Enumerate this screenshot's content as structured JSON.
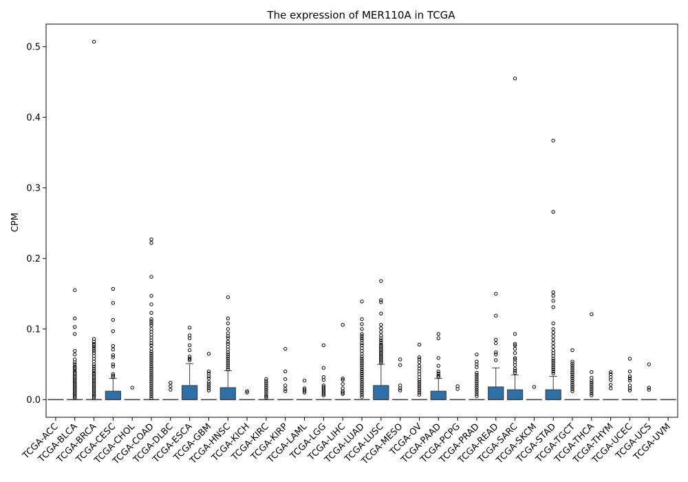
{
  "chart_data": {
    "type": "box",
    "title": "The expression of MER110A in TCGA",
    "xlabel": "",
    "ylabel": "CPM",
    "ylim": [
      -0.025,
      0.532
    ],
    "yticks": [
      0.0,
      0.1,
      0.2,
      0.3,
      0.4,
      0.5
    ],
    "ytick_labels": [
      "0.0",
      "0.1",
      "0.2",
      "0.3",
      "0.4",
      "0.5"
    ],
    "grid": false,
    "legend": null,
    "box_color": "#2f6fa8",
    "box_edge_color": "#3a3a3a",
    "categories": [
      "TCGA-ACC",
      "TCGA-BLCA",
      "TCGA-BRCA",
      "TCGA-CESC",
      "TCGA-CHOL",
      "TCGA-COAD",
      "TCGA-DLBC",
      "TCGA-ESCA",
      "TCGA-GBM",
      "TCGA-HNSC",
      "TCGA-KICH",
      "TCGA-KIRC",
      "TCGA-KIRP",
      "TCGA-LAML",
      "TCGA-LGG",
      "TCGA-LIHC",
      "TCGA-LUAD",
      "TCGA-LUSC",
      "TCGA-MESO",
      "TCGA-OV",
      "TCGA-PAAD",
      "TCGA-PCPG",
      "TCGA-PRAD",
      "TCGA-READ",
      "TCGA-SARC",
      "TCGA-SKCM",
      "TCGA-STAD",
      "TCGA-TGCT",
      "TCGA-THCA",
      "TCGA-THYM",
      "TCGA-UCEC",
      "TCGA-UCS",
      "TCGA-UVM"
    ],
    "boxes": [
      {
        "q1": 0,
        "median": 0,
        "q3": 0,
        "whisker_high": 0,
        "outliers": []
      },
      {
        "q1": 0,
        "median": 0,
        "q3": 0,
        "whisker_high": 0,
        "outliers": [
          0.155,
          0.115,
          0.103,
          0.093,
          0.069,
          0.064,
          0.057,
          0.053,
          0.05,
          0.047,
          0.045,
          0.043,
          0.04,
          0.038,
          0.036,
          0.034,
          0.032,
          0.03,
          0.028,
          0.026,
          0.024,
          0.022,
          0.02,
          0.018,
          0.016,
          0.014,
          0.012,
          0.01,
          0.008,
          0.006,
          0.004,
          0.002
        ]
      },
      {
        "q1": 0,
        "median": 0,
        "q3": 0,
        "whisker_high": 0,
        "outliers": [
          0.507,
          0.086,
          0.082,
          0.079,
          0.077,
          0.075,
          0.072,
          0.069,
          0.066,
          0.062,
          0.058,
          0.054,
          0.05,
          0.047,
          0.044,
          0.041,
          0.038,
          0.036,
          0.034,
          0.032,
          0.03,
          0.028,
          0.026,
          0.024,
          0.022,
          0.02,
          0.018,
          0.016,
          0.014,
          0.012,
          0.01,
          0.008,
          0.006,
          0.004,
          0.002
        ]
      },
      {
        "q1": 0,
        "median": 0,
        "q3": 0.012,
        "whisker_high": 0.03,
        "outliers": [
          0.157,
          0.137,
          0.113,
          0.097,
          0.076,
          0.071,
          0.063,
          0.06,
          0.05,
          0.047,
          0.036,
          0.034,
          0.032
        ]
      },
      {
        "q1": 0,
        "median": 0,
        "q3": 0,
        "whisker_high": 0,
        "outliers": [
          0.017
        ]
      },
      {
        "q1": 0,
        "median": 0,
        "q3": 0,
        "whisker_high": 0,
        "outliers": [
          0.227,
          0.222,
          0.174,
          0.147,
          0.135,
          0.123,
          0.114,
          0.111,
          0.108,
          0.105,
          0.1,
          0.096,
          0.092,
          0.088,
          0.084,
          0.08,
          0.077,
          0.072,
          0.068,
          0.065,
          0.062,
          0.059,
          0.056,
          0.053,
          0.05,
          0.047,
          0.044,
          0.041,
          0.038,
          0.035,
          0.032,
          0.029,
          0.026,
          0.023,
          0.02,
          0.017,
          0.014,
          0.011,
          0.008,
          0.005,
          0.002
        ]
      },
      {
        "q1": 0,
        "median": 0,
        "q3": 0,
        "whisker_high": 0,
        "outliers": [
          0.024,
          0.019,
          0.014
        ]
      },
      {
        "q1": 0,
        "median": 0,
        "q3": 0.02,
        "whisker_high": 0.051,
        "outliers": [
          0.102,
          0.091,
          0.087,
          0.077,
          0.07,
          0.061,
          0.058,
          0.056
        ]
      },
      {
        "q1": 0,
        "median": 0,
        "q3": 0,
        "whisker_high": 0,
        "outliers": [
          0.065,
          0.04,
          0.037,
          0.033,
          0.03,
          0.025,
          0.022,
          0.019,
          0.016,
          0.013
        ]
      },
      {
        "q1": 0,
        "median": 0,
        "q3": 0.017,
        "whisker_high": 0.041,
        "outliers": [
          0.145,
          0.115,
          0.108,
          0.1,
          0.094,
          0.09,
          0.087,
          0.082,
          0.079,
          0.075,
          0.071,
          0.067,
          0.064,
          0.061,
          0.058,
          0.055,
          0.052,
          0.049,
          0.046,
          0.043
        ]
      },
      {
        "q1": 0,
        "median": 0,
        "q3": 0,
        "whisker_high": 0,
        "outliers": [
          0.012,
          0.01
        ]
      },
      {
        "q1": 0,
        "median": 0,
        "q3": 0,
        "whisker_high": 0,
        "outliers": [
          0.029,
          0.026,
          0.023,
          0.02,
          0.017,
          0.014,
          0.011,
          0.008,
          0.005,
          0.003
        ]
      },
      {
        "q1": 0,
        "median": 0,
        "q3": 0,
        "whisker_high": 0,
        "outliers": [
          0.072,
          0.04,
          0.029,
          0.02,
          0.015,
          0.012
        ]
      },
      {
        "q1": 0,
        "median": 0,
        "q3": 0,
        "whisker_high": 0,
        "outliers": [
          0.027,
          0.016,
          0.014,
          0.012,
          0.01
        ]
      },
      {
        "q1": 0,
        "median": 0,
        "q3": 0,
        "whisker_high": 0,
        "outliers": [
          0.077,
          0.045,
          0.032,
          0.028,
          0.02,
          0.018,
          0.016,
          0.014,
          0.012,
          0.01,
          0.008,
          0.006
        ]
      },
      {
        "q1": 0,
        "median": 0,
        "q3": 0,
        "whisker_high": 0,
        "outliers": [
          0.106,
          0.03,
          0.028,
          0.022,
          0.016,
          0.012,
          0.01,
          0.008
        ]
      },
      {
        "q1": 0,
        "median": 0,
        "q3": 0,
        "whisker_high": 0,
        "outliers": [
          0.139,
          0.114,
          0.107,
          0.1,
          0.093,
          0.09,
          0.087,
          0.084,
          0.08,
          0.077,
          0.073,
          0.069,
          0.065,
          0.061,
          0.058,
          0.055,
          0.052,
          0.049,
          0.046,
          0.043,
          0.04,
          0.037,
          0.034,
          0.031,
          0.028,
          0.025,
          0.022,
          0.019,
          0.016,
          0.013,
          0.01,
          0.007,
          0.004
        ]
      },
      {
        "q1": 0,
        "median": 0,
        "q3": 0.02,
        "whisker_high": 0.05,
        "outliers": [
          0.168,
          0.141,
          0.138,
          0.122,
          0.106,
          0.101,
          0.096,
          0.091,
          0.087,
          0.084,
          0.081,
          0.078,
          0.076,
          0.074,
          0.072,
          0.07,
          0.068,
          0.066,
          0.064,
          0.062,
          0.06,
          0.058,
          0.056,
          0.054,
          0.052
        ]
      },
      {
        "q1": 0,
        "median": 0,
        "q3": 0,
        "whisker_high": 0,
        "outliers": [
          0.057,
          0.049,
          0.02,
          0.016,
          0.013
        ]
      },
      {
        "q1": 0,
        "median": 0,
        "q3": 0,
        "whisker_high": 0,
        "outliers": [
          0.078,
          0.06,
          0.057,
          0.053,
          0.048,
          0.044,
          0.04,
          0.036,
          0.032,
          0.028,
          0.025,
          0.022,
          0.019,
          0.016,
          0.013,
          0.01,
          0.007
        ]
      },
      {
        "q1": 0,
        "median": 0,
        "q3": 0.012,
        "whisker_high": 0.03,
        "outliers": [
          0.093,
          0.087,
          0.059,
          0.048,
          0.04,
          0.037,
          0.034,
          0.032
        ]
      },
      {
        "q1": 0,
        "median": 0,
        "q3": 0,
        "whisker_high": 0,
        "outliers": [
          0.019,
          0.015
        ]
      },
      {
        "q1": 0,
        "median": 0,
        "q3": 0,
        "whisker_high": 0,
        "outliers": [
          0.064,
          0.054,
          0.05,
          0.046,
          0.038,
          0.035,
          0.032,
          0.029,
          0.026,
          0.023,
          0.02,
          0.017,
          0.014,
          0.011,
          0.008,
          0.005
        ]
      },
      {
        "q1": 0,
        "median": 0,
        "q3": 0.018,
        "whisker_high": 0.045,
        "outliers": [
          0.15,
          0.119,
          0.085,
          0.08,
          0.067,
          0.064,
          0.056
        ]
      },
      {
        "q1": 0,
        "median": 0,
        "q3": 0.014,
        "whisker_high": 0.035,
        "outliers": [
          0.455,
          0.093,
          0.079,
          0.077,
          0.072,
          0.066,
          0.059,
          0.057,
          0.053,
          0.049,
          0.044,
          0.041,
          0.038
        ]
      },
      {
        "q1": 0,
        "median": 0,
        "q3": 0,
        "whisker_high": 0,
        "outliers": [
          0.018
        ]
      },
      {
        "q1": 0,
        "median": 0,
        "q3": 0.014,
        "whisker_high": 0.033,
        "outliers": [
          0.367,
          0.266,
          0.152,
          0.147,
          0.14,
          0.131,
          0.108,
          0.1,
          0.095,
          0.09,
          0.085,
          0.08,
          0.075,
          0.07,
          0.066,
          0.062,
          0.058,
          0.055,
          0.052,
          0.049,
          0.046,
          0.043,
          0.04,
          0.037
        ]
      },
      {
        "q1": 0,
        "median": 0,
        "q3": 0,
        "whisker_high": 0,
        "outliers": [
          0.07,
          0.054,
          0.051,
          0.048,
          0.045,
          0.042,
          0.039,
          0.036,
          0.033,
          0.03,
          0.027,
          0.024,
          0.021,
          0.018,
          0.015,
          0.012
        ]
      },
      {
        "q1": 0,
        "median": 0,
        "q3": 0,
        "whisker_high": 0,
        "outliers": [
          0.121,
          0.039,
          0.031,
          0.027,
          0.024,
          0.021,
          0.018,
          0.015,
          0.012,
          0.009,
          0.006
        ]
      },
      {
        "q1": 0,
        "median": 0,
        "q3": 0,
        "whisker_high": 0,
        "outliers": [
          0.039,
          0.036,
          0.032,
          0.028,
          0.021,
          0.016
        ]
      },
      {
        "q1": 0,
        "median": 0,
        "q3": 0,
        "whisker_high": 0,
        "outliers": [
          0.058,
          0.04,
          0.033,
          0.03,
          0.027,
          0.02,
          0.016,
          0.013
        ]
      },
      {
        "q1": 0,
        "median": 0,
        "q3": 0,
        "whisker_high": 0,
        "outliers": [
          0.05,
          0.017,
          0.014
        ]
      },
      {
        "q1": 0,
        "median": 0,
        "q3": 0,
        "whisker_high": 0,
        "outliers": []
      }
    ]
  }
}
